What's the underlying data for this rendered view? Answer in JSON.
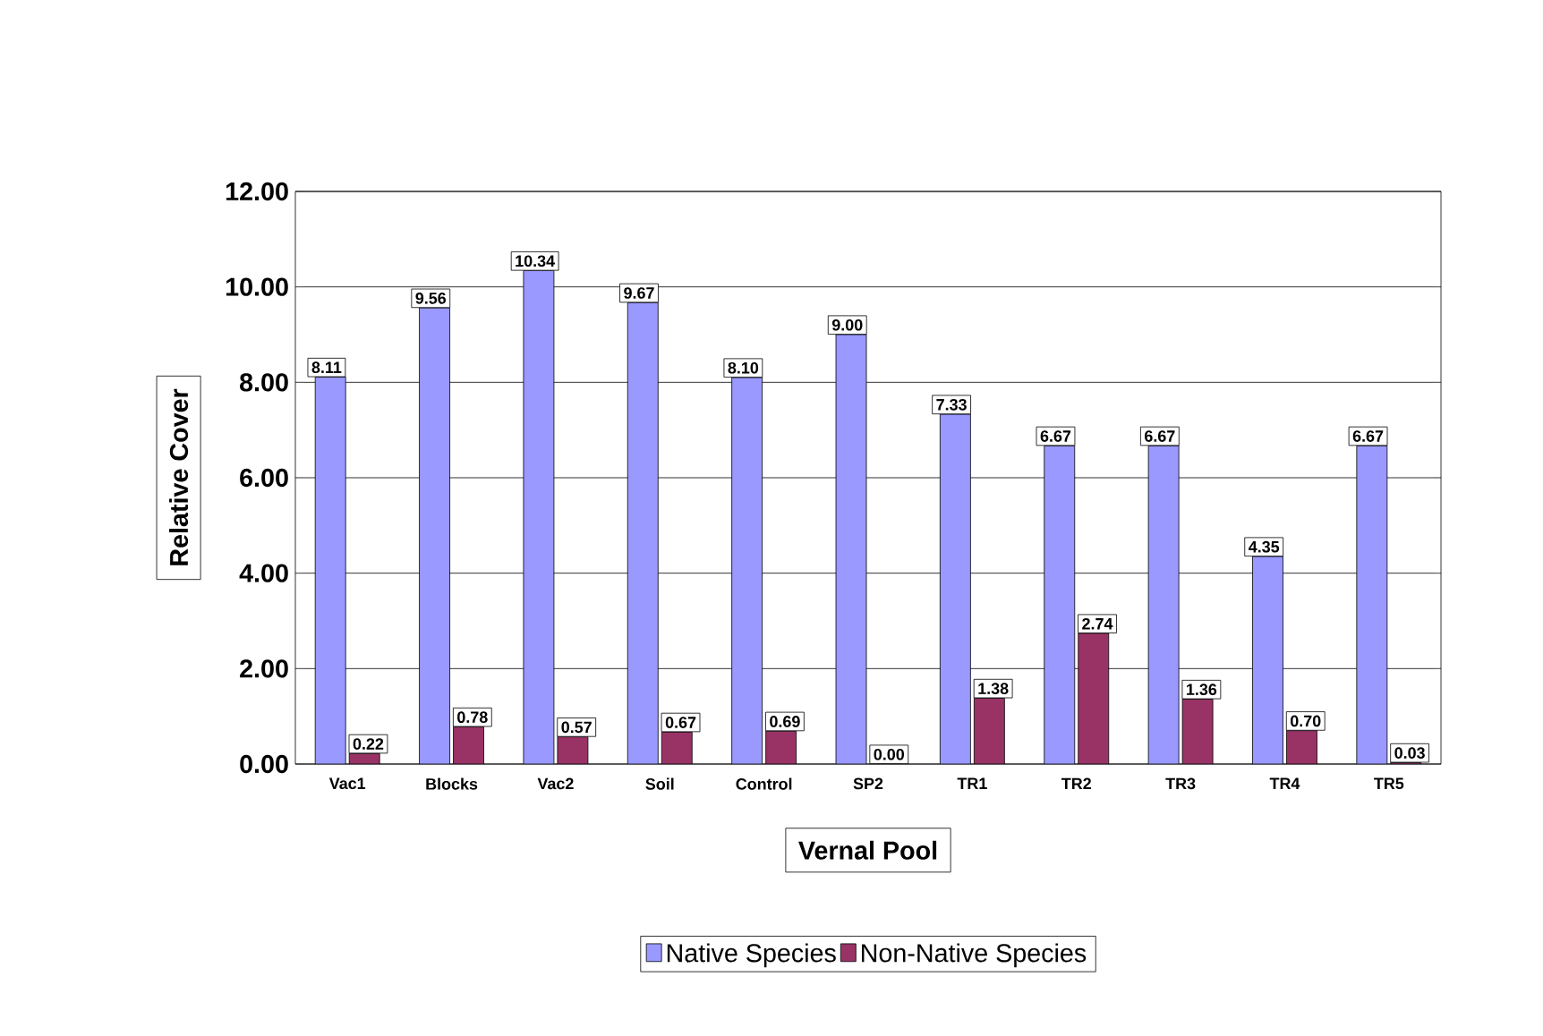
{
  "chart_data": {
    "type": "bar",
    "xlabel": "Vernal Pool",
    "ylabel": "Relative Cover",
    "categories": [
      "Vac1",
      "Blocks",
      "Vac2",
      "Soil",
      "Control",
      "SP2",
      "TR1",
      "TR2",
      "TR3",
      "TR4",
      "TR5"
    ],
    "series": [
      {
        "name": "Native Species",
        "color": "#9999ff",
        "values": [
          8.11,
          9.56,
          10.34,
          9.67,
          8.1,
          9.0,
          7.33,
          6.67,
          6.67,
          4.35,
          6.67
        ],
        "value_labels": [
          "8.11",
          "9.56",
          "10.34",
          "9.67",
          "8.10",
          "9.00",
          "7.33",
          "6.67",
          "6.67",
          "4.35",
          "6.67"
        ]
      },
      {
        "name": "Non-Native Species",
        "color": "#993366",
        "values": [
          0.22,
          0.78,
          0.57,
          0.67,
          0.69,
          0.0,
          1.38,
          2.74,
          1.36,
          0.7,
          0.03
        ],
        "value_labels": [
          "0.22",
          "0.78",
          "0.57",
          "0.67",
          "0.69",
          "0.00",
          "1.38",
          "2.74",
          "1.36",
          "0.70",
          "0.03"
        ]
      }
    ],
    "ylim": [
      0,
      12
    ],
    "yticks": [
      {
        "value": 0,
        "label": "0.00"
      },
      {
        "value": 2,
        "label": "2.00"
      },
      {
        "value": 4,
        "label": "4.00"
      },
      {
        "value": 6,
        "label": "6.00"
      },
      {
        "value": 8,
        "label": "8.00"
      },
      {
        "value": 10,
        "label": "10.00"
      },
      {
        "value": 12,
        "label": "12.00"
      }
    ],
    "grid": "y",
    "legend": "bottom"
  }
}
